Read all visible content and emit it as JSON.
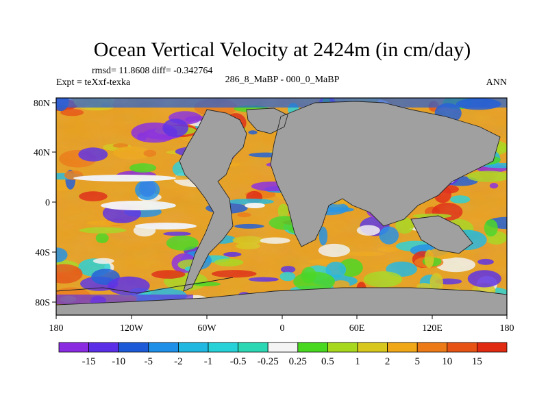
{
  "title": "Ocean Vertical Velocity at 2424m (in cm/day)",
  "stats": "rmsd= 11.8608 diff= -0.342764",
  "experiment": "Expt = teXxf-texka",
  "comparison": "286_8_MaBP - 000_0_MaBP",
  "season": "ANN",
  "lat_ticks": [
    "80N",
    "40N",
    "0",
    "40S",
    "80S"
  ],
  "lon_ticks": [
    "180",
    "120W",
    "60W",
    "0",
    "60E",
    "120E",
    "180"
  ],
  "colorbar": {
    "labels": [
      "-15",
      "-10",
      "-5",
      "-2",
      "-1",
      "-0.5",
      "-0.25",
      "0.25",
      "0.5",
      "1",
      "2",
      "5",
      "10",
      "15"
    ],
    "colors": [
      "#8a2be2",
      "#5a2ee6",
      "#1c5ad8",
      "#1e90e8",
      "#20b8e0",
      "#26d2d8",
      "#2cd8b4",
      "#f4f4f4",
      "#48d820",
      "#a8d81e",
      "#d8c81e",
      "#f0a818",
      "#ec7a16",
      "#e65314",
      "#e02a12"
    ]
  },
  "land_color": "#a0a0a0"
}
